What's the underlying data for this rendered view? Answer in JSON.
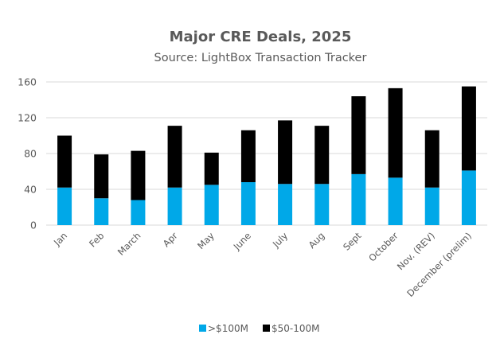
{
  "chart_data": {
    "type": "bar",
    "stacked": true,
    "title": "Major CRE Deals, 2025",
    "subtitle": "Source: LightBox Transaction Tracker",
    "xlabel": "",
    "ylabel": "",
    "categories": [
      "Jan",
      "Feb",
      "March",
      "Apr",
      "May",
      "June",
      "July",
      "Aug",
      "Sept",
      "October",
      "Nov. (REV)",
      "December (prelim)"
    ],
    "series": [
      {
        "name": ">$100M",
        "color": "#00A8E8",
        "values": [
          42,
          30,
          28,
          42,
          45,
          48,
          46,
          46,
          57,
          53,
          42,
          61
        ]
      },
      {
        "name": "$50-100M",
        "color": "#000000",
        "values": [
          58,
          49,
          55,
          69,
          36,
          58,
          71,
          65,
          87,
          100,
          64,
          94
        ]
      }
    ],
    "ylim": [
      0,
      160
    ],
    "yticks": [
      0,
      40,
      80,
      120,
      160
    ],
    "grid": true,
    "legend_position": "bottom"
  }
}
